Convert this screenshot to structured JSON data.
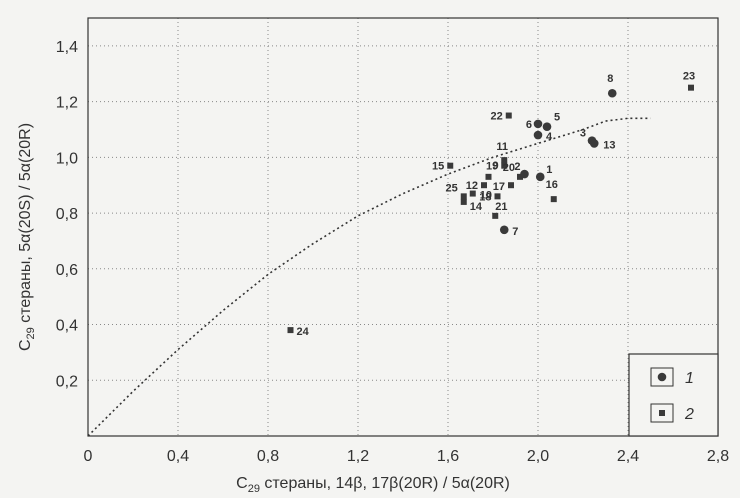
{
  "chart_data": {
    "type": "scatter",
    "xlabel": {
      "sub_prefix": "C",
      "sub": "29",
      "rest": " стераны, 14β, 17β(20R) / 5α(20R)"
    },
    "ylabel": {
      "sub_prefix": "C",
      "sub": "29",
      "rest": " стераны, 5α(20S) / 5α(20R)"
    },
    "xlim": [
      0,
      2.8
    ],
    "ylim": [
      0,
      1.5
    ],
    "x_ticks": [
      "0",
      "0,4",
      "0,8",
      "1,2",
      "1,6",
      "2,0",
      "2,4",
      "2,8"
    ],
    "y_ticks": [
      "0,2",
      "0,4",
      "0,6",
      "0,8",
      "1,0",
      "1,2",
      "1,4"
    ],
    "grid": true,
    "legend_position": "bottom-right",
    "series": [
      {
        "name": "1",
        "marker": "circle",
        "points": [
          {
            "label": "1",
            "x": 2.01,
            "y": 0.93
          },
          {
            "label": "2",
            "x": 1.94,
            "y": 0.94
          },
          {
            "label": "3",
            "x": 2.24,
            "y": 1.06
          },
          {
            "label": "4",
            "x": 2.0,
            "y": 1.08
          },
          {
            "label": "5",
            "x": 2.04,
            "y": 1.11
          },
          {
            "label": "6",
            "x": 2.0,
            "y": 1.12
          },
          {
            "label": "7",
            "x": 1.85,
            "y": 0.74
          },
          {
            "label": "8",
            "x": 2.33,
            "y": 1.23
          },
          {
            "label": "13",
            "x": 2.25,
            "y": 1.05
          }
        ]
      },
      {
        "name": "2",
        "marker": "square",
        "points": [
          {
            "label": "9",
            "x": 1.78,
            "y": 0.93
          },
          {
            "label": "10",
            "x": 1.71,
            "y": 0.87
          },
          {
            "label": "11",
            "x": 1.85,
            "y": 0.99
          },
          {
            "label": "12",
            "x": 1.76,
            "y": 0.9
          },
          {
            "label": "14",
            "x": 1.67,
            "y": 0.84
          },
          {
            "label": "15",
            "x": 1.61,
            "y": 0.97
          },
          {
            "label": "16",
            "x": 2.07,
            "y": 0.85
          },
          {
            "label": "17",
            "x": 1.88,
            "y": 0.9
          },
          {
            "label": "18",
            "x": 1.82,
            "y": 0.86
          },
          {
            "label": "19",
            "x": 1.85,
            "y": 0.97
          },
          {
            "label": "20",
            "x": 1.92,
            "y": 0.93
          },
          {
            "label": "21",
            "x": 1.81,
            "y": 0.79
          },
          {
            "label": "22",
            "x": 1.87,
            "y": 1.15
          },
          {
            "label": "23",
            "x": 2.68,
            "y": 1.25
          },
          {
            "label": "24",
            "x": 0.9,
            "y": 0.38
          },
          {
            "label": "25",
            "x": 1.67,
            "y": 0.86
          }
        ]
      }
    ],
    "trend_curve": [
      [
        0.0,
        0.0
      ],
      [
        0.2,
        0.16
      ],
      [
        0.4,
        0.31
      ],
      [
        0.6,
        0.45
      ],
      [
        0.8,
        0.58
      ],
      [
        1.0,
        0.69
      ],
      [
        1.2,
        0.79
      ],
      [
        1.4,
        0.87
      ],
      [
        1.6,
        0.94
      ],
      [
        1.8,
        1.0
      ],
      [
        2.0,
        1.05
      ],
      [
        2.2,
        1.1
      ],
      [
        2.3,
        1.13
      ],
      [
        2.4,
        1.14
      ],
      [
        2.5,
        1.14
      ]
    ]
  }
}
